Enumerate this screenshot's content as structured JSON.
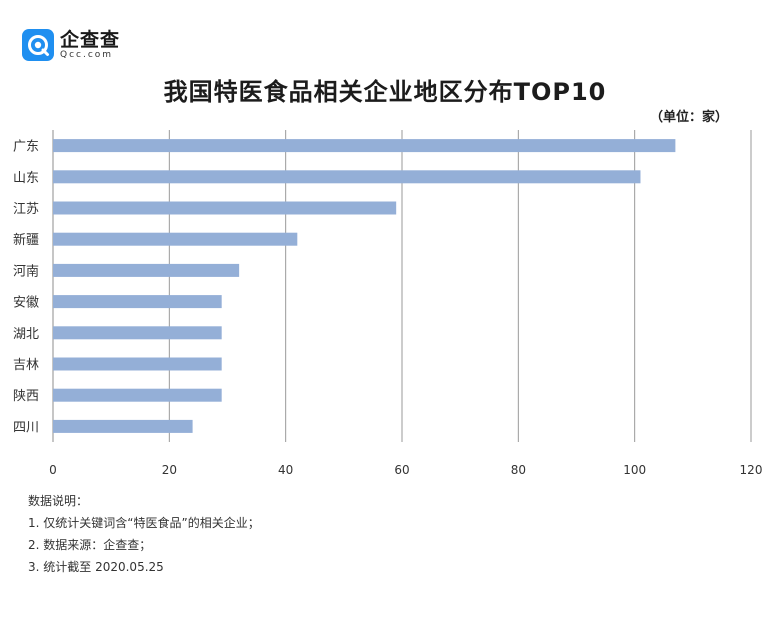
{
  "brand": {
    "name_cn": "企查查",
    "name_en": "Qcc.com",
    "accent": "#1f8ff0"
  },
  "unit_label": "（单位：家）",
  "chart_data": {
    "type": "bar",
    "orientation": "horizontal",
    "title": "我国特医食品相关企业地区分布TOP10",
    "categories": [
      "广东",
      "山东",
      "江苏",
      "新疆",
      "河南",
      "安徽",
      "湖北",
      "吉林",
      "陕西",
      "四川"
    ],
    "values": [
      107,
      101,
      59,
      42,
      32,
      29,
      29,
      29,
      29,
      24
    ],
    "xlim": [
      0,
      120
    ],
    "xticks": [
      0,
      20,
      40,
      60,
      80,
      100,
      120
    ],
    "grid": true,
    "bar_color": "#94afd7",
    "xlabel": "",
    "ylabel": ""
  },
  "notes": {
    "heading": "数据说明：",
    "items": [
      "1. 仅统计关键词含“特医食品”的相关企业；",
      "2. 数据来源：企查查；",
      "3. 统计截至 2020.05.25"
    ]
  }
}
